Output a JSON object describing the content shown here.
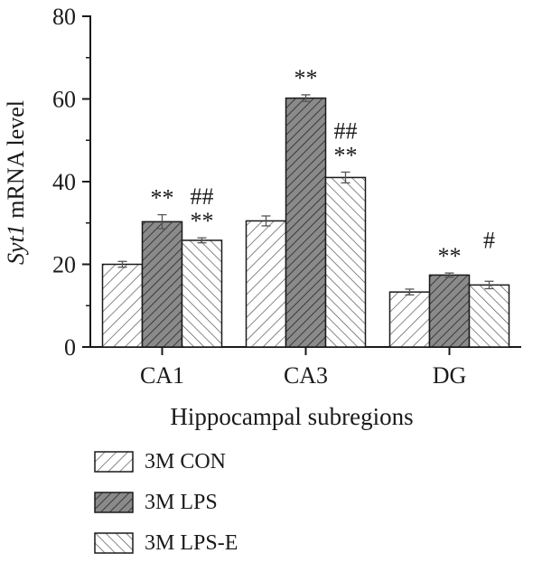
{
  "chart_data": {
    "type": "bar",
    "ylabel_italic": "Syt1",
    "ylabel_rest": " mRNA level",
    "xlabel": "Hippocampal subregions",
    "categories": [
      "CA1",
      "CA3",
      "DG"
    ],
    "ylim": [
      0,
      80
    ],
    "yticks": [
      0,
      20,
      40,
      60,
      80
    ],
    "grid": false,
    "legend_placement": "bottom",
    "series": [
      {
        "name": "3M CON",
        "pattern": "forward-hatch-light",
        "values": [
          20,
          30.5,
          13.3
        ],
        "errors": [
          0.7,
          1.2,
          0.7
        ],
        "annotations": [
          [
            "",
            ""
          ],
          [
            "",
            ""
          ],
          [
            "",
            ""
          ]
        ]
      },
      {
        "name": "3M LPS",
        "pattern": "dark-gray-hatch",
        "values": [
          30.3,
          60.2,
          17.4
        ],
        "errors": [
          1.7,
          0.8,
          0.5
        ],
        "annotations": [
          [
            "**",
            ""
          ],
          [
            "**",
            ""
          ],
          [
            "**",
            ""
          ]
        ]
      },
      {
        "name": "3M LPS-E",
        "pattern": "backward-hatch-light",
        "values": [
          25.8,
          41.0,
          15.0
        ],
        "errors": [
          0.6,
          1.3,
          0.9
        ],
        "annotations": [
          [
            "**",
            "##"
          ],
          [
            "**",
            "##"
          ],
          [
            "",
            "#"
          ]
        ]
      }
    ],
    "colors": {
      "axis": "#1a1a1a",
      "dark_fill": "#8a8a8a",
      "hatch": "#444444"
    }
  }
}
